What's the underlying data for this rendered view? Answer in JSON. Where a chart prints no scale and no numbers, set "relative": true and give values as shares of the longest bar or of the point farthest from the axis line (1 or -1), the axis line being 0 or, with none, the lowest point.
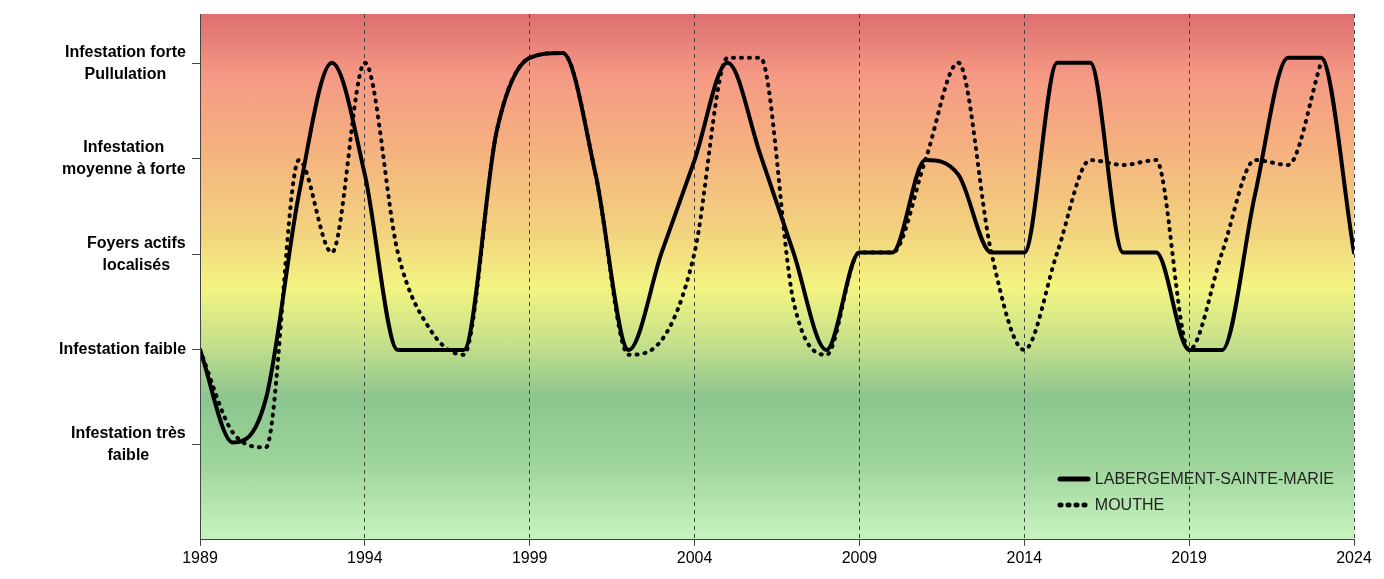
{
  "chart_data": {
    "type": "line",
    "relative": true,
    "legend": "bottom right",
    "grid": "x",
    "marker": "none",
    "x": [
      1989,
      1990,
      1991,
      1992,
      1993,
      1994,
      1995,
      1996,
      1997,
      1998,
      1999,
      2000,
      2001,
      2002,
      2003,
      2004,
      2005,
      2006,
      2007,
      2008,
      2009,
      2010,
      2011,
      2012,
      2013,
      2014,
      2015,
      2016,
      2017,
      2018,
      2019,
      2020,
      2021,
      2022,
      2023,
      2024
    ],
    "xlim": [
      1989,
      2024
    ],
    "xticks": [
      1989,
      1994,
      1999,
      2004,
      2009,
      2014,
      2019,
      2024
    ],
    "annotations": [
      "Infestation très\nfaible",
      "Infestation faible",
      "Foyers actifs\nlocalisés",
      "Infestation\nmoyenne à forte",
      "Infestation forte\nPullulation"
    ],
    "series": [
      {
        "name": "LABERGEMENT-SAINTE-MARIE",
        "color": "#000000",
        "line_style": "solid",
        "values": [
          0.39,
          0.2,
          0.29,
          0.71,
          0.98,
          0.75,
          0.39,
          0.39,
          0.39,
          0.84,
          0.99,
          1,
          0.75,
          0.39,
          0.59,
          0.78,
          0.98,
          0.79,
          0.59,
          0.39,
          0.59,
          0.59,
          0.78,
          0.75,
          0.59,
          0.59,
          0.98,
          0.98,
          0.59,
          0.59,
          0.39,
          0.39,
          0.71,
          0.99,
          0.99,
          0.59
        ]
      },
      {
        "name": "MOUTHE",
        "color": "#000000",
        "line_style": "dotted",
        "values": [
          0.39,
          0.22,
          0.19,
          0.78,
          0.59,
          0.98,
          0.59,
          0.43,
          0.38,
          0.84,
          0.99,
          1,
          0.75,
          0.38,
          0.41,
          0.59,
          0.99,
          0.99,
          0.49,
          0.38,
          0.59,
          0.59,
          0.78,
          0.98,
          0.59,
          0.39,
          0.59,
          0.78,
          0.77,
          0.78,
          0.39,
          0.59,
          0.78,
          0.77,
          0.98,
          null
        ]
      }
    ]
  }
}
